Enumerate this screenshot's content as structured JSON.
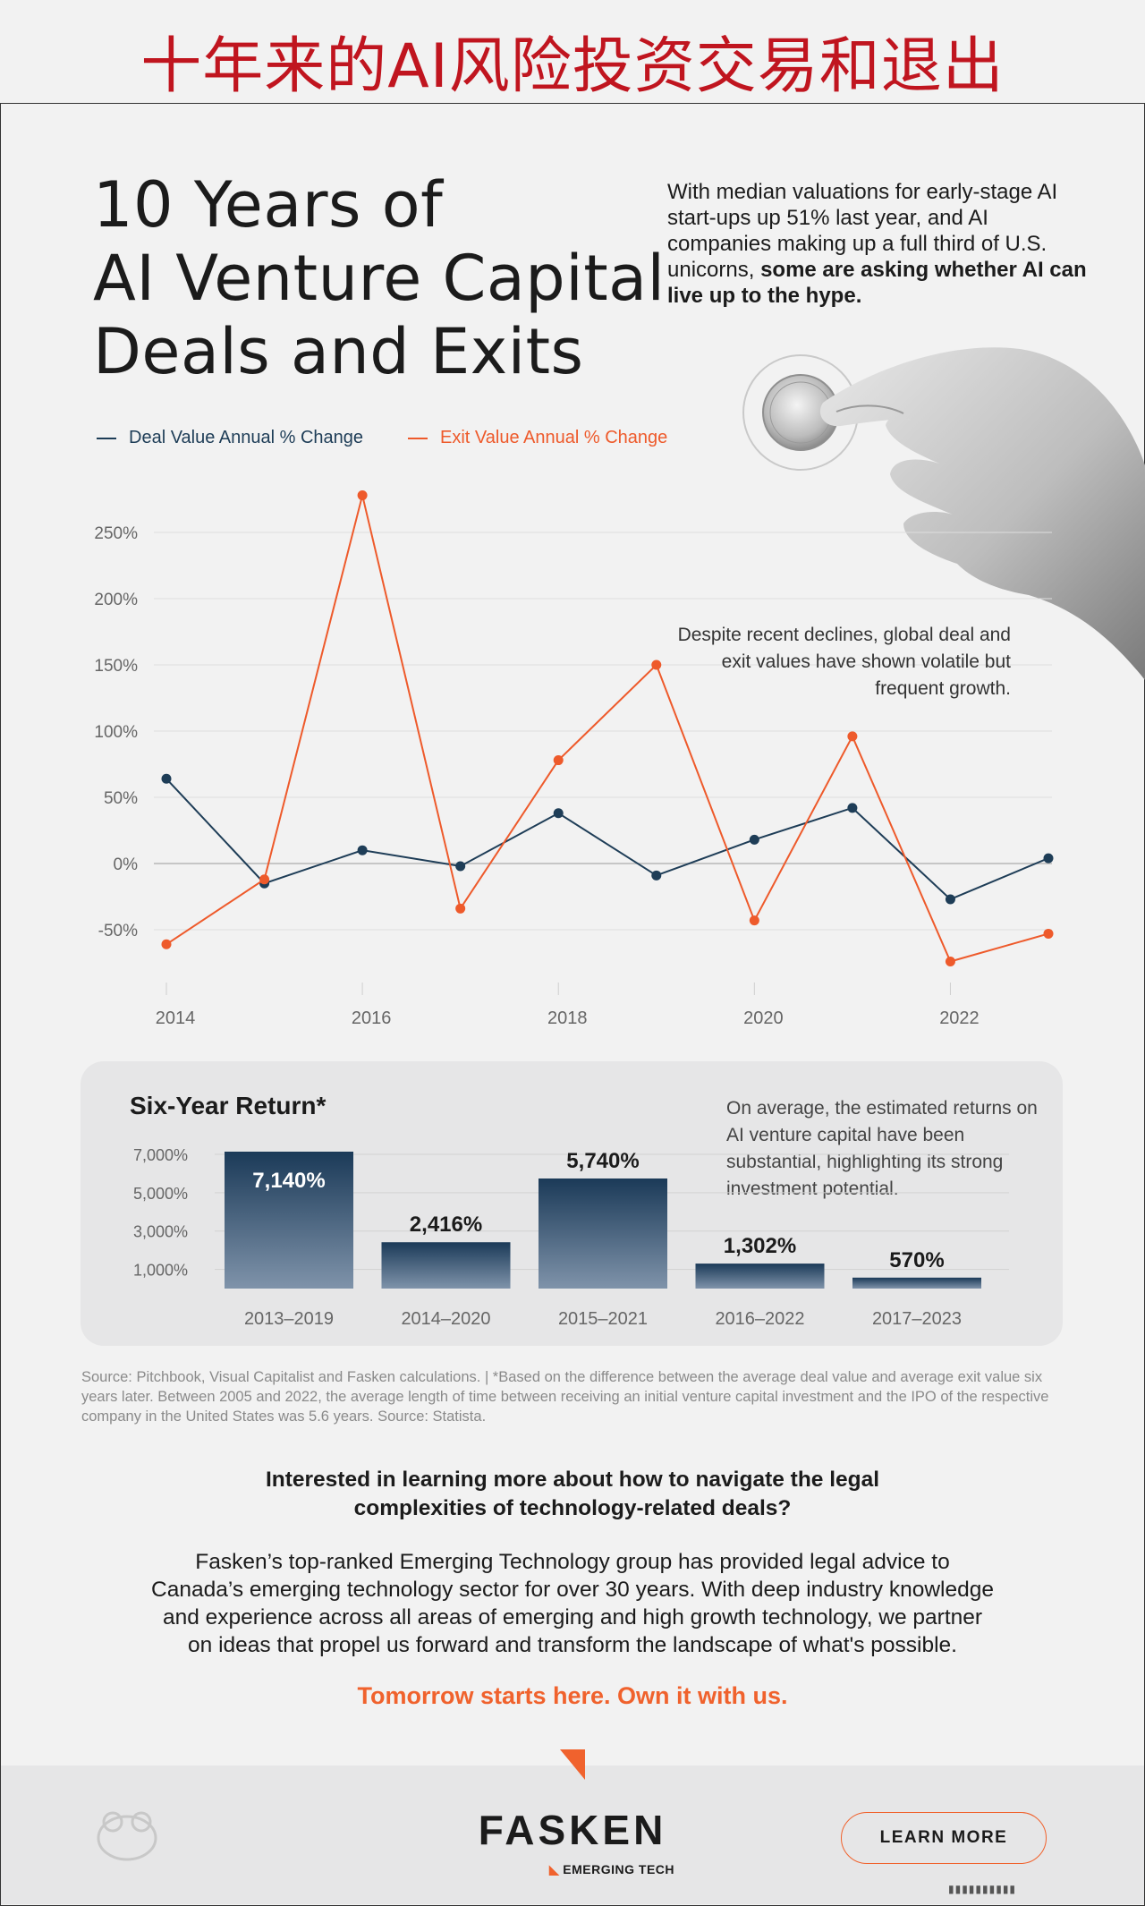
{
  "banner": {
    "title": "十年来的AI风险投资交易和退出"
  },
  "title_lines": [
    "10 Years of",
    "AI Venture Capital",
    "Deals and Exits"
  ],
  "intro": {
    "text": "With median valuations for early-stage AI start-ups up 51% last year, and AI companies making up a full third of U.S. unicorns,",
    "bold": "some are asking whether AI can live up to the hype."
  },
  "annotation": "Despite recent declines, global deal and exit values have shown volatile but frequent growth.",
  "chart_data": [
    {
      "type": "line",
      "x": [
        2014,
        2015,
        2016,
        2017,
        2018,
        2019,
        2020,
        2021,
        2022,
        2023
      ],
      "x_tick_labels": [
        "2014",
        "2016",
        "2018",
        "2020",
        "2022"
      ],
      "y_tick_labels": [
        "250%",
        "200%",
        "150%",
        "100%",
        "50%",
        "0%",
        "-50%"
      ],
      "y_ticks": [
        250,
        200,
        150,
        100,
        50,
        0,
        -50
      ],
      "ylim": [
        -60,
        270
      ],
      "grid": true,
      "legend_placement": "top-left",
      "series": [
        {
          "name": "Deal Value Annual % Change",
          "color": "#1e3d57",
          "values": [
            64,
            -15,
            10,
            -2,
            38,
            -9,
            18,
            42,
            -27,
            4
          ]
        },
        {
          "name": "Exit Value Annual % Change",
          "color": "#ee5a2b",
          "values": [
            -61,
            -12,
            278,
            -34,
            78,
            150,
            -43,
            96,
            -74,
            -53
          ]
        }
      ]
    },
    {
      "type": "bar",
      "title": "Six-Year Return*",
      "categories": [
        "2013–2019",
        "2014–2020",
        "2015–2021",
        "2016–2022",
        "2017–2023"
      ],
      "values": [
        7140,
        2416,
        5740,
        1302,
        570
      ],
      "value_labels": [
        "7,140%",
        "2,416%",
        "5,740%",
        "1,302%",
        "570%"
      ],
      "y_tick_labels": [
        "7,000%",
        "5,000%",
        "3,000%",
        "1,000%"
      ],
      "y_ticks": [
        7000,
        5000,
        3000,
        1000
      ],
      "ylim": [
        0,
        7140
      ],
      "grid": true
    }
  ],
  "bar_note": "On average, the estimated returns on AI venture capital have been substantial, highlighting its strong investment potential.",
  "source": "Source: Pitchbook, Visual Capitalist and Fasken calculations. | *Based on the difference between the average deal value and average exit value six years later. Between 2005 and 2022, the average length of time between receiving an initial venture capital investment and the IPO of the respective company in the United States was 5.6 years. Source: Statista.",
  "cta": {
    "head": [
      "Interested in learning more about how to navigate the legal",
      "complexities of technology-related deals?"
    ],
    "body": [
      "Fasken’s top-ranked Emerging Technology group has provided legal advice to",
      "Canada’s emerging technology sector for over 30 years. With deep industry knowledge",
      "and experience across all areas of emerging and high growth technology, we partner",
      "on ideas that propel us forward and transform the landscape of what's possible."
    ],
    "tagline": "Tomorrow starts here. Own it with us."
  },
  "footer": {
    "brand": "FASKEN",
    "brand_sub": "EMERGING TECH",
    "button": "LEARN MORE"
  },
  "colors": {
    "accent": "#f0622d",
    "navy": "#1e3d57",
    "banner_red": "#c0151f"
  },
  "icons": [
    "coin-icon",
    "hand-icon",
    "fasken-mark-icon",
    "watermark-icon"
  ]
}
